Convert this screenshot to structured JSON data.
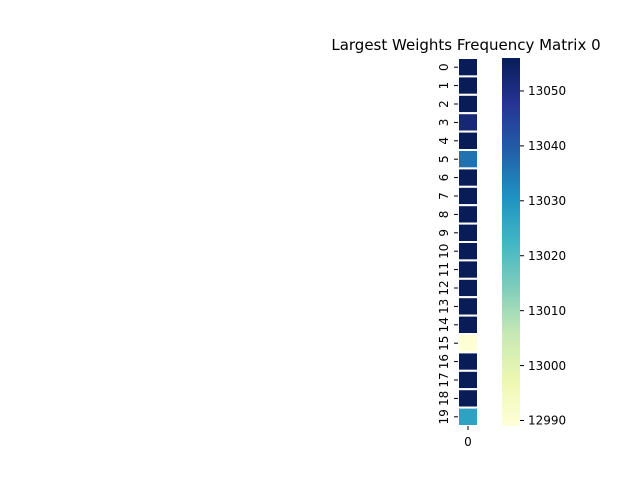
{
  "chart_data": {
    "type": "heatmap",
    "title": "Largest Weights Frequency Matrix 0",
    "rows": [
      "0",
      "1",
      "2",
      "3",
      "4",
      "5",
      "6",
      "7",
      "8",
      "9",
      "10",
      "11",
      "12",
      "13",
      "14",
      "15",
      "16",
      "17",
      "18",
      "19"
    ],
    "columns": [
      "0"
    ],
    "values": [
      [
        13056
      ],
      [
        13056
      ],
      [
        13056
      ],
      [
        13052
      ],
      [
        13056
      ],
      [
        13036
      ],
      [
        13056
      ],
      [
        13056
      ],
      [
        13056
      ],
      [
        13056
      ],
      [
        13056
      ],
      [
        13056
      ],
      [
        13056
      ],
      [
        13056
      ],
      [
        13056
      ],
      [
        12990
      ],
      [
        13056
      ],
      [
        13056
      ],
      [
        13056
      ],
      [
        13027
      ]
    ],
    "colorbar": {
      "colormap": "YlGnBu",
      "min": 12989,
      "max": 13056,
      "ticks": [
        "13050",
        "13040",
        "13030",
        "13020",
        "13010",
        "13000",
        "12990"
      ]
    },
    "xlabel": "",
    "ylabel": "",
    "grid": false,
    "legend": "colorbar-right"
  }
}
